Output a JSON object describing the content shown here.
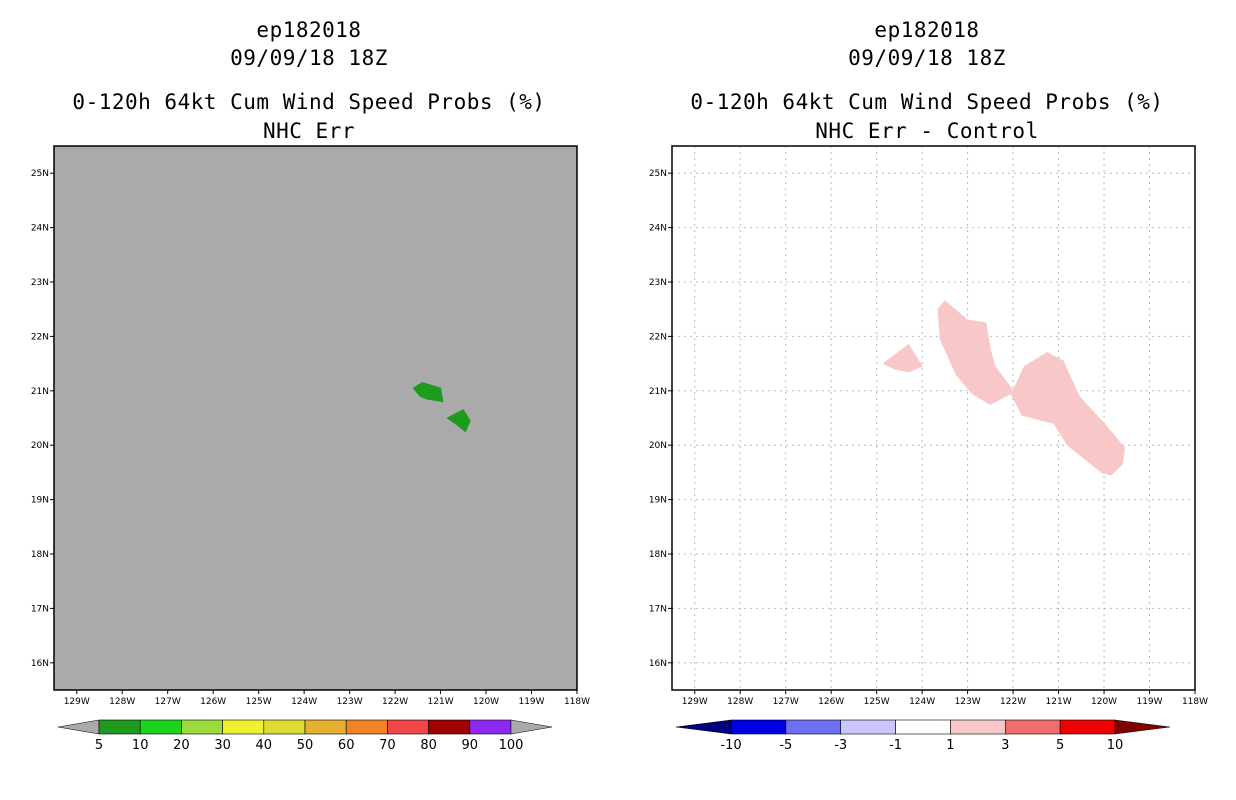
{
  "chart_data": [
    {
      "type": "heatmap",
      "storm_id": "ep182018",
      "datetime": "09/09/18 18Z",
      "title": "0-120h 64kt Cum Wind Speed Probs (%)",
      "subtitle": "NHC Err",
      "background": "#aaaaaa",
      "grid": false,
      "xlim": [
        -129.5,
        -118
      ],
      "ylim": [
        15.5,
        25.5
      ],
      "xticks": [
        {
          "value": -129,
          "label": "129W"
        },
        {
          "value": -128,
          "label": "128W"
        },
        {
          "value": -127,
          "label": "127W"
        },
        {
          "value": -126,
          "label": "126W"
        },
        {
          "value": -125,
          "label": "125W"
        },
        {
          "value": -124,
          "label": "124W"
        },
        {
          "value": -123,
          "label": "123W"
        },
        {
          "value": -122,
          "label": "122W"
        },
        {
          "value": -121,
          "label": "121W"
        },
        {
          "value": -120,
          "label": "120W"
        },
        {
          "value": -119,
          "label": "119W"
        },
        {
          "value": -118,
          "label": "118W"
        }
      ],
      "yticks": [
        {
          "value": 16,
          "label": "16N"
        },
        {
          "value": 17,
          "label": "17N"
        },
        {
          "value": 18,
          "label": "18N"
        },
        {
          "value": 19,
          "label": "19N"
        },
        {
          "value": 20,
          "label": "20N"
        },
        {
          "value": 21,
          "label": "21N"
        },
        {
          "value": 22,
          "label": "22N"
        },
        {
          "value": 23,
          "label": "23N"
        },
        {
          "value": 24,
          "label": "24N"
        },
        {
          "value": 25,
          "label": "25N"
        }
      ],
      "regions": [
        {
          "name": "prob-region-north",
          "color": "#1e9b1e",
          "level": "5-10",
          "points": [
            [
              -121.6,
              21.05
            ],
            [
              -121.4,
              21.15
            ],
            [
              -121.0,
              21.05
            ],
            [
              -120.95,
              20.8
            ],
            [
              -121.3,
              20.85
            ],
            [
              -121.45,
              20.9
            ]
          ]
        },
        {
          "name": "prob-region-south",
          "color": "#1e9b1e",
          "level": "5-10",
          "points": [
            [
              -120.85,
              20.5
            ],
            [
              -120.5,
              20.65
            ],
            [
              -120.35,
              20.45
            ],
            [
              -120.45,
              20.25
            ],
            [
              -120.6,
              20.35
            ]
          ]
        }
      ],
      "colorbar": {
        "under_color": "#aaaaaa",
        "over_color": "#aaaaaa",
        "colors": [
          "#1e9b1e",
          "#1ed21e",
          "#9bdc3c",
          "#f0f032",
          "#dcdc32",
          "#e6af2d",
          "#f08228",
          "#f04646",
          "#a00000",
          "#8c28f0"
        ],
        "labels": [
          "5",
          "10",
          "20",
          "30",
          "40",
          "50",
          "60",
          "70",
          "80",
          "90",
          "100"
        ]
      }
    },
    {
      "type": "heatmap",
      "storm_id": "ep182018",
      "datetime": "09/09/18 18Z",
      "title": "0-120h 64kt Cum Wind Speed Probs (%)",
      "subtitle": "NHC Err - Control",
      "background": "#ffffff",
      "grid": true,
      "xlim": [
        -129.5,
        -118
      ],
      "ylim": [
        15.5,
        25.5
      ],
      "xticks": [
        {
          "value": -129,
          "label": "129W"
        },
        {
          "value": -128,
          "label": "128W"
        },
        {
          "value": -127,
          "label": "127W"
        },
        {
          "value": -126,
          "label": "126W"
        },
        {
          "value": -125,
          "label": "125W"
        },
        {
          "value": -124,
          "label": "124W"
        },
        {
          "value": -123,
          "label": "123W"
        },
        {
          "value": -122,
          "label": "122W"
        },
        {
          "value": -121,
          "label": "121W"
        },
        {
          "value": -120,
          "label": "120W"
        },
        {
          "value": -119,
          "label": "119W"
        },
        {
          "value": -118,
          "label": "118W"
        }
      ],
      "yticks": [
        {
          "value": 16,
          "label": "16N"
        },
        {
          "value": 17,
          "label": "17N"
        },
        {
          "value": 18,
          "label": "18N"
        },
        {
          "value": 19,
          "label": "19N"
        },
        {
          "value": 20,
          "label": "20N"
        },
        {
          "value": 21,
          "label": "21N"
        },
        {
          "value": 22,
          "label": "22N"
        },
        {
          "value": 23,
          "label": "23N"
        },
        {
          "value": 24,
          "label": "24N"
        },
        {
          "value": 25,
          "label": "25N"
        }
      ],
      "regions": [
        {
          "name": "diff-region-small",
          "color": "#f8c8c8",
          "level": "1-3",
          "points": [
            [
              -124.85,
              21.5
            ],
            [
              -124.3,
              21.85
            ],
            [
              -124.0,
              21.45
            ],
            [
              -124.3,
              21.35
            ],
            [
              -124.6,
              21.4
            ]
          ]
        },
        {
          "name": "diff-region-main",
          "color": "#f8c8c8",
          "level": "1-3",
          "points": [
            [
              -123.65,
              22.5
            ],
            [
              -123.5,
              22.65
            ],
            [
              -123.0,
              22.3
            ],
            [
              -122.6,
              22.25
            ],
            [
              -122.5,
              21.75
            ],
            [
              -122.4,
              21.45
            ],
            [
              -122.0,
              21.0
            ],
            [
              -121.75,
              21.45
            ],
            [
              -121.25,
              21.7
            ],
            [
              -120.9,
              21.55
            ],
            [
              -120.55,
              20.9
            ],
            [
              -120.0,
              20.4
            ],
            [
              -119.55,
              19.95
            ],
            [
              -119.6,
              19.65
            ],
            [
              -119.85,
              19.45
            ],
            [
              -120.05,
              19.5
            ],
            [
              -120.8,
              20.0
            ],
            [
              -121.1,
              20.4
            ],
            [
              -121.8,
              20.55
            ],
            [
              -122.05,
              20.95
            ],
            [
              -122.5,
              20.75
            ],
            [
              -122.9,
              20.95
            ],
            [
              -123.25,
              21.3
            ],
            [
              -123.6,
              21.95
            ]
          ]
        }
      ],
      "colorbar": {
        "under_color": "#000080",
        "over_color": "#800000",
        "colors": [
          "#0000e6",
          "#6e6ef0",
          "#c8c8ff",
          "#ffffff",
          "#f8c8c8",
          "#f06e6e",
          "#f00000"
        ],
        "labels": [
          "-10",
          "-5",
          "-3",
          "-1",
          "1",
          "3",
          "5",
          "10"
        ]
      }
    }
  ]
}
